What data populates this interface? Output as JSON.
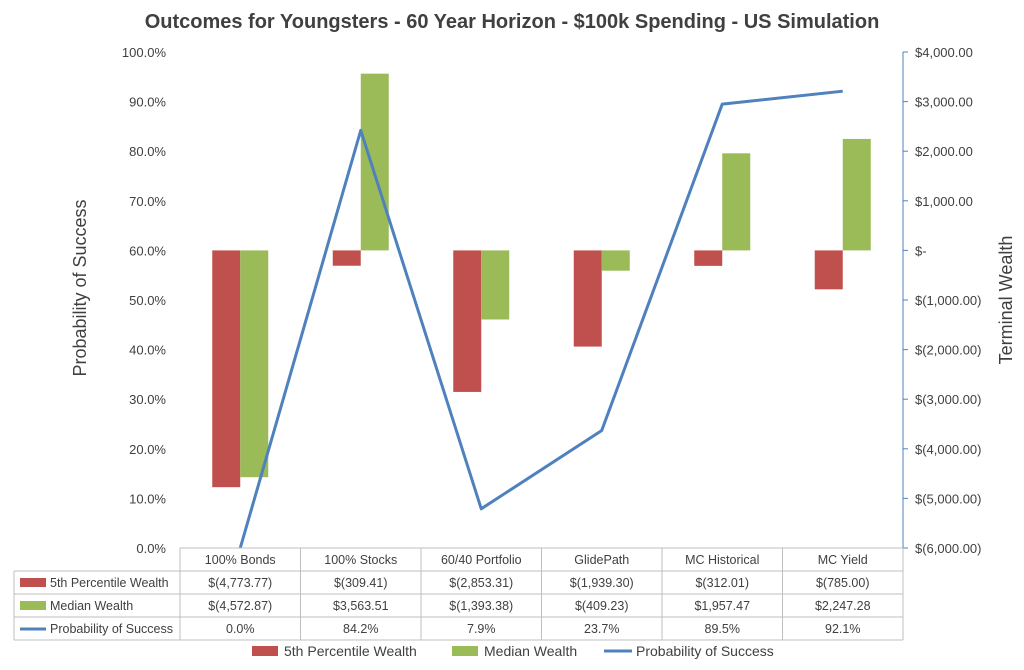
{
  "chart_data": {
    "type": "bar",
    "title": "Outcomes for Youngsters - 60 Year Horizon - $100k Spending - US Simulation",
    "ylabel": "Probability of Success",
    "y2label": "Terminal Wealth",
    "categories": [
      "100% Bonds",
      "100% Stocks",
      "60/40 Portfolio",
      "GlidePath",
      "MC Historical",
      "MC Yield"
    ],
    "left_axis": {
      "min": 0,
      "max": 100,
      "step": 10,
      "ticks": [
        "0.0%",
        "10.0%",
        "20.0%",
        "30.0%",
        "40.0%",
        "50.0%",
        "60.0%",
        "70.0%",
        "80.0%",
        "90.0%",
        "100.0%"
      ]
    },
    "right_axis": {
      "min": -6000,
      "max": 4000,
      "step": 1000,
      "ticks": [
        "$(6,000.00)",
        "$(5,000.00)",
        "$(4,000.00)",
        "$(3,000.00)",
        "$(2,000.00)",
        "$(1,000.00)",
        "$-",
        "$1,000.00",
        "$2,000.00",
        "$3,000.00",
        "$4,000.00"
      ]
    },
    "series": [
      {
        "name": "5th Percentile Wealth",
        "type": "bar",
        "axis": "right",
        "color": "#c0504d",
        "values": [
          -4773.77,
          -309.41,
          -2853.31,
          -1939.3,
          -312.01,
          -785.0
        ],
        "labels": [
          "$(4,773.77)",
          "$(309.41)",
          "$(2,853.31)",
          "$(1,939.30)",
          "$(312.01)",
          "$(785.00)"
        ]
      },
      {
        "name": "Median Wealth",
        "type": "bar",
        "axis": "right",
        "color": "#9bbb59",
        "values": [
          -4572.87,
          3563.51,
          -1393.38,
          -409.23,
          1957.47,
          2247.28
        ],
        "labels": [
          "$(4,572.87)",
          "$3,563.51",
          "$(1,393.38)",
          "$(409.23)",
          "$1,957.47",
          "$2,247.28"
        ]
      },
      {
        "name": "Probability of Success",
        "type": "line",
        "axis": "left",
        "color": "#4f81bd",
        "values": [
          0.0,
          84.2,
          7.9,
          23.7,
          89.5,
          92.1
        ],
        "labels": [
          "0.0%",
          "84.2%",
          "7.9%",
          "23.7%",
          "89.5%",
          "92.1%"
        ]
      }
    ],
    "grid": false,
    "legend": "bottom",
    "data_table": true
  }
}
